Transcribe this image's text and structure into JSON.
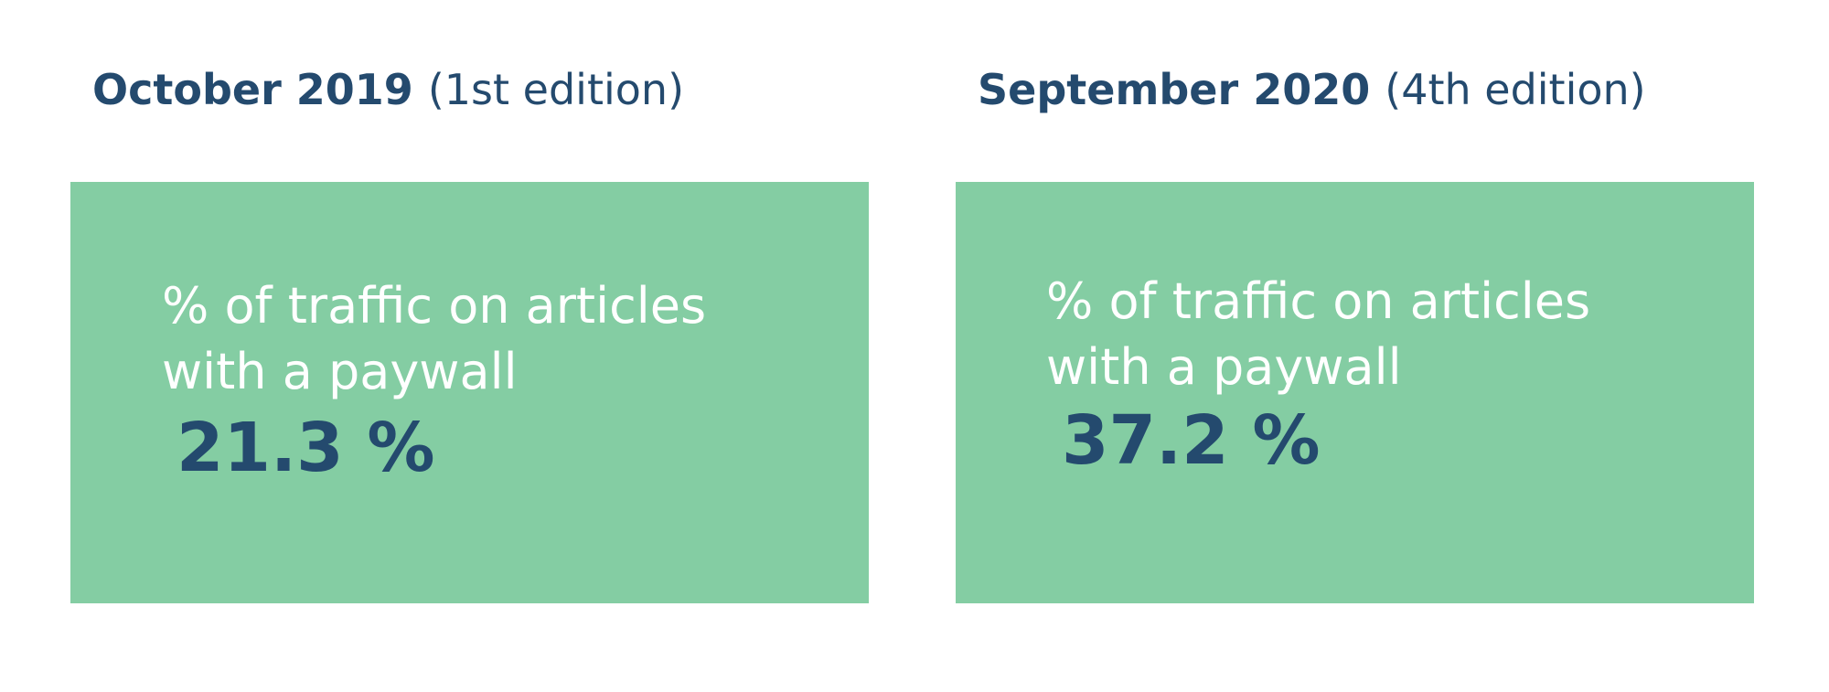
{
  "editions": [
    {
      "period": "October 2019",
      "edition": "(1st edition)",
      "metric_label": "% of traffic on articles with a paywall",
      "metric_value": "21.3 %"
    },
    {
      "period": "September 2020",
      "edition": "(4th edition)",
      "metric_label": "% of traffic on articles with a paywall",
      "metric_value": "37.2 %"
    }
  ],
  "colors": {
    "heading": "#244a6e",
    "card_background": "#84cda3",
    "label_text": "#ffffff",
    "value_text": "#244a6e"
  }
}
